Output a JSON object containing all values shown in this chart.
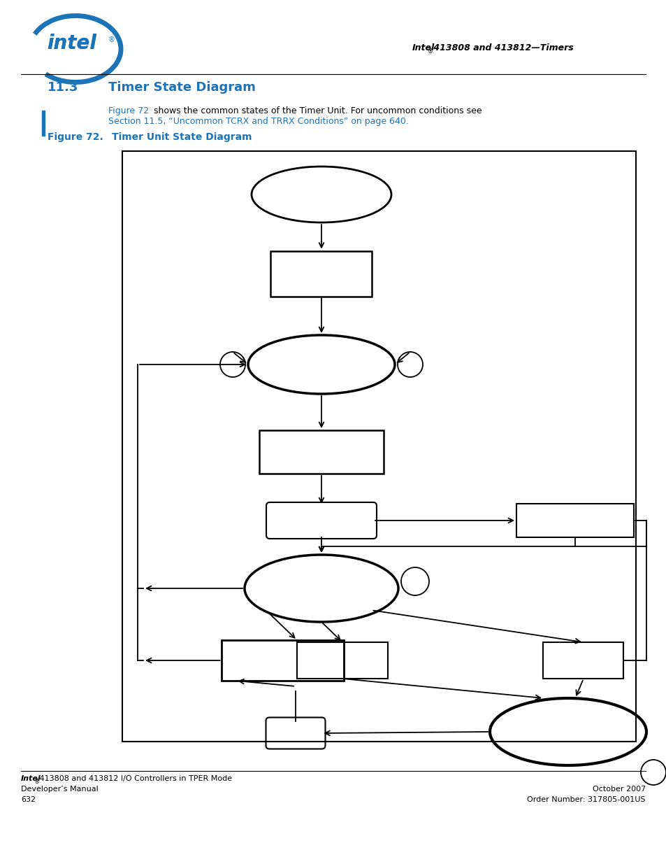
{
  "blue_color": "#1B74B8",
  "black": "#000000",
  "white": "#FFFFFF",
  "header_italic": "Intel® 413808 and 413812—Timers",
  "section_num": "11.3",
  "section_title": "Timer State Diagram",
  "body1_blue": "Figure 72",
  "body1_rest": " shows the common states of the Timer Unit. For uncommon conditions see",
  "body2": "Section 11.5, “Uncommon TCRX and TRRX Conditions” on page 640.",
  "fig_label": "Figure 72.",
  "fig_title": "Timer Unit State Diagram",
  "footer1": "Intel® 413808 and 413812 I/O Controllers in TPER Mode",
  "footer2": "Developer’s Manual",
  "footer3": "632",
  "footer_r1": "October 2007",
  "footer_r2": "Order Number: 317805-001US"
}
